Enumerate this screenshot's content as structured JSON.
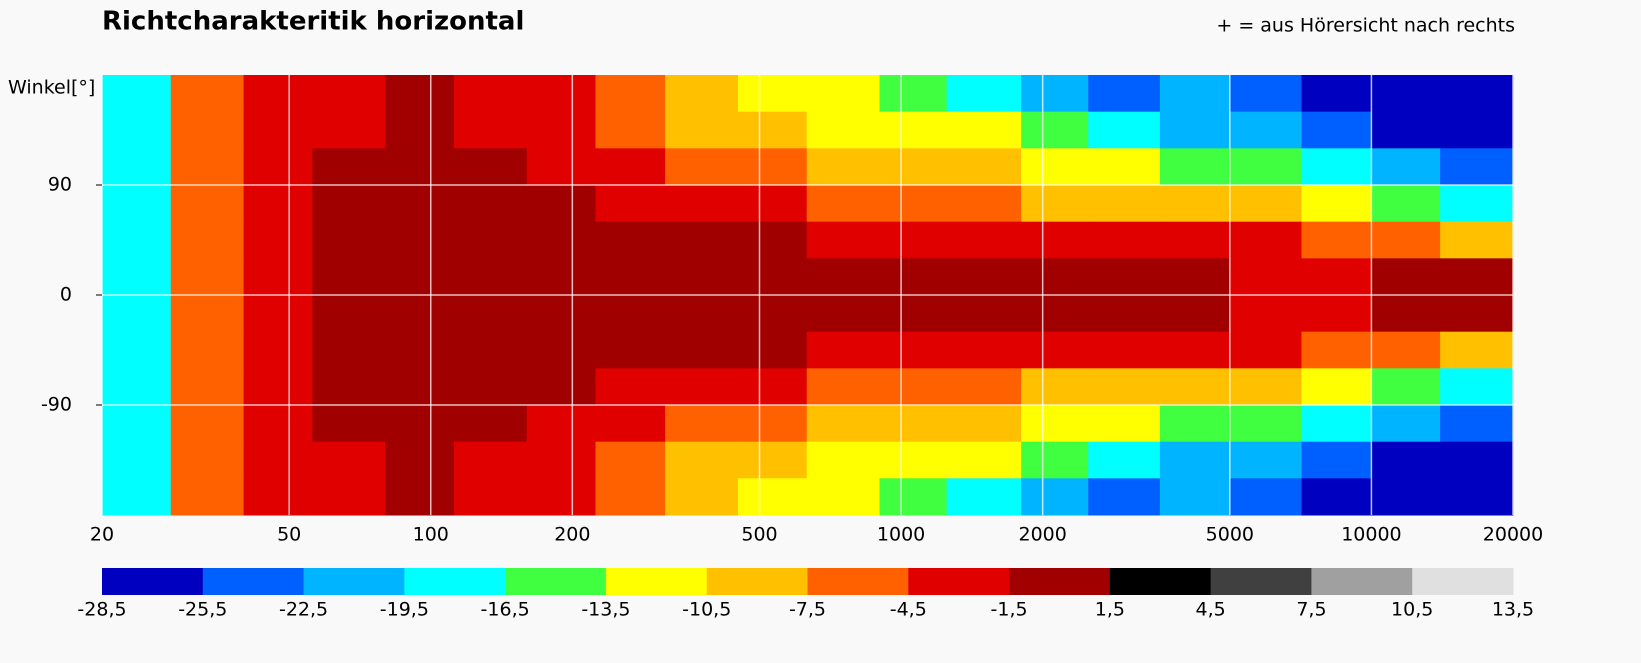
{
  "chart_data": {
    "type": "heatmap",
    "title": "Richtcharakteritik horizontal",
    "note": "+ = aus Hörersicht nach rechts",
    "ylabel": "Winkel[°]",
    "xscale": "log",
    "xlim": [
      20,
      20000
    ],
    "xticks": [
      20,
      50,
      100,
      200,
      500,
      1000,
      2000,
      5000,
      10000,
      20000
    ],
    "ylim": [
      -180,
      180
    ],
    "yticks": [
      90,
      0,
      -90
    ],
    "grid": true,
    "x_edges": [
      20,
      28,
      40,
      56,
      80,
      112,
      160,
      224,
      315,
      450,
      630,
      900,
      1250,
      1800,
      2500,
      3550,
      5000,
      7100,
      10000,
      14000,
      20000
    ],
    "y_edges": [
      180,
      150,
      120,
      90,
      60,
      30,
      0,
      -30,
      -60,
      -90,
      -120,
      -150,
      -180
    ],
    "values": [
      [
        -17,
        -7,
        -3,
        -3,
        0,
        -3,
        -3,
        -6,
        -9,
        -12,
        -13,
        -15,
        -18,
        -22,
        -25,
        -22,
        -24,
        -27,
        -27,
        -27
      ],
      [
        -17,
        -7,
        -3,
        -3,
        0,
        -3,
        -3,
        -6,
        -8,
        -9,
        -12,
        -12,
        -13,
        -16,
        -18,
        -21,
        -21,
        -24,
        -27,
        -27
      ],
      [
        -17,
        -7,
        -3,
        0,
        0,
        0,
        -3,
        -3,
        -6,
        -6,
        -9,
        -9,
        -10,
        -12,
        -13,
        -15,
        -16,
        -18,
        -21,
        -24
      ],
      [
        -17,
        -7,
        -3,
        0,
        0,
        0,
        0,
        -3,
        -3,
        -3,
        -6,
        -6,
        -6,
        -8,
        -9,
        -10,
        -9,
        -12,
        -15,
        -18
      ],
      [
        -17,
        -7,
        -3,
        0,
        0,
        0,
        0,
        0,
        0,
        0,
        -3,
        -3,
        -3,
        -3,
        -3,
        -3,
        -4,
        -5,
        -6,
        -9
      ],
      [
        -17,
        -7,
        -3,
        0,
        0,
        0,
        0,
        0,
        0,
        0,
        0,
        0,
        0,
        0,
        0,
        -1,
        -2,
        -2,
        -1,
        -1
      ],
      [
        -17,
        -7,
        -3,
        0,
        0,
        0,
        0,
        0,
        0,
        0,
        0,
        0,
        0,
        0,
        0,
        -1,
        -2,
        -2,
        -1,
        -1
      ],
      [
        -17,
        -7,
        -3,
        0,
        0,
        0,
        0,
        0,
        0,
        0,
        -3,
        -3,
        -3,
        -3,
        -3,
        -3,
        -4,
        -5,
        -6,
        -9
      ],
      [
        -17,
        -7,
        -3,
        0,
        0,
        0,
        0,
        -3,
        -3,
        -3,
        -6,
        -6,
        -6,
        -8,
        -9,
        -10,
        -9,
        -12,
        -15,
        -18
      ],
      [
        -17,
        -7,
        -3,
        0,
        0,
        0,
        -3,
        -3,
        -6,
        -6,
        -9,
        -9,
        -10,
        -12,
        -13,
        -15,
        -16,
        -18,
        -21,
        -24
      ],
      [
        -17,
        -7,
        -3,
        -3,
        0,
        -3,
        -3,
        -6,
        -8,
        -9,
        -12,
        -12,
        -13,
        -16,
        -18,
        -21,
        -21,
        -24,
        -27,
        -27
      ],
      [
        -17,
        -7,
        -3,
        -3,
        0,
        -3,
        -3,
        -6,
        -9,
        -12,
        -13,
        -15,
        -18,
        -22,
        -25,
        -22,
        -24,
        -27,
        -27,
        -27
      ]
    ],
    "colorbar": {
      "colors": [
        "#0000c0",
        "#0060ff",
        "#00b4ff",
        "#00ffff",
        "#40ff40",
        "#ffff00",
        "#ffc000",
        "#ff6000",
        "#e00000",
        "#a00000",
        "#000000",
        "#404040",
        "#a0a0a0",
        "#e0e0e0"
      ],
      "ticks": [
        {
          "value": -28.5,
          "label": "-28,5"
        },
        {
          "value": -25.5,
          "label": "-25,5"
        },
        {
          "value": -22.5,
          "label": "-22,5"
        },
        {
          "value": -19.5,
          "label": "-19,5"
        },
        {
          "value": -16.5,
          "label": "-16,5"
        },
        {
          "value": -13.5,
          "label": "-13,5"
        },
        {
          "value": -10.5,
          "label": "-10,5"
        },
        {
          "value": -7.5,
          "label": "-7,5"
        },
        {
          "value": -4.5,
          "label": "-4,5"
        },
        {
          "value": -1.5,
          "label": "-1,5"
        },
        {
          "value": 1.5,
          "label": "1,5"
        },
        {
          "value": 4.5,
          "label": "4,5"
        },
        {
          "value": 7.5,
          "label": "7,5"
        },
        {
          "value": 10.5,
          "label": "10,5"
        },
        {
          "value": 13.5,
          "label": "13,5"
        }
      ]
    }
  }
}
